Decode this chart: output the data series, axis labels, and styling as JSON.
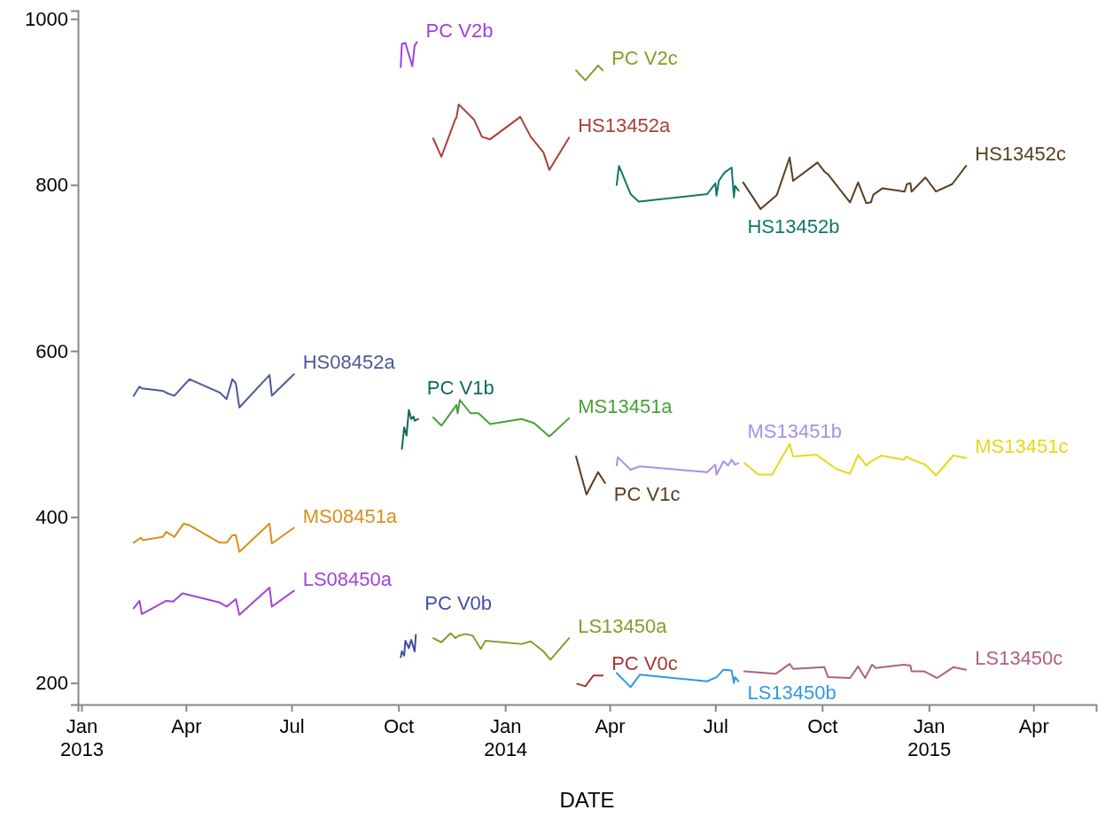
{
  "chart_data": {
    "type": "line",
    "xlabel": "DATE",
    "xlim": [
      "2012-12-29",
      "2015-05-25"
    ],
    "ylim": [
      174,
      1010
    ],
    "xticks": [
      {
        "value": "2013-01-01",
        "label": "Jan 2013"
      },
      {
        "value": "2013-04-01",
        "label": "Apr"
      },
      {
        "value": "2013-07-01",
        "label": "Jul"
      },
      {
        "value": "2013-10-01",
        "label": "Oct"
      },
      {
        "value": "2014-01-01",
        "label": "Jan 2014"
      },
      {
        "value": "2014-04-01",
        "label": "Apr"
      },
      {
        "value": "2014-07-01",
        "label": "Jul"
      },
      {
        "value": "2014-10-01",
        "label": "Oct"
      },
      {
        "value": "2015-01-01",
        "label": "Jan 2015"
      },
      {
        "value": "2015-04-01",
        "label": "Apr"
      }
    ],
    "yticks": [
      200,
      400,
      600,
      800,
      1000
    ],
    "grid": false,
    "legend": false,
    "marker": "none",
    "line_style": "solid",
    "series": [
      {
        "name": "HS08452a",
        "color": "#4a5a98",
        "x": [
          "2013-02-15",
          "2013-02-20",
          "2013-02-22",
          "2013-03-12",
          "2013-03-16",
          "2013-03-22",
          "2013-04-04",
          "2013-04-30",
          "2013-05-06",
          "2013-05-11",
          "2013-05-14",
          "2013-05-17",
          "2013-06-12",
          "2013-06-14",
          "2013-07-03"
        ],
        "values": [
          546,
          557,
          555,
          552,
          549,
          546,
          566,
          550,
          542,
          566,
          561,
          532,
          571,
          546,
          572
        ]
      },
      {
        "name": "MS08451a",
        "color": "#d8901c",
        "x": [
          "2013-02-15",
          "2013-02-21",
          "2013-02-23",
          "2013-03-12",
          "2013-03-15",
          "2013-03-22",
          "2013-03-30",
          "2013-04-04",
          "2013-04-30",
          "2013-05-06",
          "2013-05-11",
          "2013-05-14",
          "2013-05-17",
          "2013-06-12",
          "2013-06-14",
          "2013-07-03"
        ],
        "values": [
          369,
          375,
          372,
          376,
          382,
          376,
          392,
          390,
          369,
          369,
          378,
          378,
          358,
          392,
          368,
          387
        ]
      },
      {
        "name": "LS08450a",
        "color": "#a044d8",
        "x": [
          "2013-02-15",
          "2013-02-20",
          "2013-02-22",
          "2013-03-15",
          "2013-03-21",
          "2013-03-29",
          "2013-04-30",
          "2013-05-06",
          "2013-05-14",
          "2013-05-17",
          "2013-06-12",
          "2013-06-14",
          "2013-07-03"
        ],
        "values": [
          290,
          299,
          283,
          299,
          298,
          308,
          297,
          292,
          301,
          282,
          315,
          292,
          311
        ]
      },
      {
        "name": "PC V2b",
        "color": "#a040e0",
        "x": [
          "2013-10-03",
          "2013-10-04",
          "2013-10-07",
          "2013-10-13",
          "2013-10-15",
          "2013-10-17"
        ],
        "values": [
          942,
          970,
          971,
          943,
          968,
          972
        ]
      },
      {
        "name": "PC V2c",
        "color": "#8a9a28",
        "x": [
          "2014-03-03",
          "2014-03-11",
          "2014-03-22",
          "2014-03-26"
        ],
        "values": [
          938,
          926,
          944,
          938
        ]
      },
      {
        "name": "HS13452a",
        "color": "#a84038",
        "x": [
          "2013-10-31",
          "2013-11-07",
          "2013-11-19",
          "2013-11-20",
          "2013-11-22",
          "2013-12-05",
          "2013-12-12",
          "2013-12-19",
          "2014-01-14",
          "2014-01-23",
          "2014-02-03",
          "2014-02-08",
          "2014-02-25"
        ],
        "values": [
          856,
          834,
          879,
          881,
          897,
          879,
          858,
          855,
          882,
          858,
          839,
          818,
          857
        ]
      },
      {
        "name": "PC V1b",
        "color": "#106858",
        "x": [
          "2013-10-04",
          "2013-10-06",
          "2013-10-08",
          "2013-10-10",
          "2013-10-12",
          "2013-10-14",
          "2013-10-15",
          "2013-10-18"
        ],
        "values": [
          482,
          508,
          498,
          529,
          518,
          521,
          516,
          518
        ]
      },
      {
        "name": "MS13451a",
        "color": "#48a038",
        "x": [
          "2013-10-31",
          "2013-11-07",
          "2013-11-16",
          "2013-11-20",
          "2013-11-21",
          "2013-11-23",
          "2013-12-02",
          "2013-12-09",
          "2013-12-19",
          "2014-01-15",
          "2014-01-26",
          "2014-02-08",
          "2014-02-25"
        ],
        "values": [
          520,
          510,
          527,
          535,
          525,
          541,
          525,
          525,
          512,
          518,
          513,
          497,
          519
        ]
      },
      {
        "name": "PC V1c",
        "color": "#5a4020",
        "x": [
          "2014-03-03",
          "2014-03-12",
          "2014-03-22",
          "2014-03-28"
        ],
        "values": [
          473,
          427,
          454,
          441
        ]
      },
      {
        "name": "HS13452b",
        "color": "#107868",
        "x": [
          "2014-04-07",
          "2014-04-09",
          "2014-04-19",
          "2014-04-26",
          "2014-06-24",
          "2014-07-01",
          "2014-07-02",
          "2014-07-04",
          "2014-07-09",
          "2014-07-15",
          "2014-07-17",
          "2014-07-18",
          "2014-07-21"
        ],
        "values": [
          800,
          823,
          789,
          780,
          789,
          802,
          787,
          805,
          815,
          821,
          785,
          799,
          793
        ]
      },
      {
        "name": "MS13451b",
        "color": "#a890e8",
        "x": [
          "2014-04-07",
          "2014-04-08",
          "2014-04-19",
          "2014-04-27",
          "2014-06-24",
          "2014-07-01",
          "2014-07-02",
          "2014-07-08",
          "2014-07-12",
          "2014-07-15",
          "2014-07-18",
          "2014-07-21"
        ],
        "values": [
          462,
          472,
          457,
          461,
          454,
          463,
          451,
          467,
          462,
          469,
          463,
          465
        ]
      },
      {
        "name": "HS13452c",
        "color": "#5a4020",
        "x": [
          "2014-07-25",
          "2014-08-09",
          "2014-08-23",
          "2014-09-03",
          "2014-09-06",
          "2014-09-27",
          "2014-10-03",
          "2014-10-06",
          "2014-10-25",
          "2014-11-01",
          "2014-11-08",
          "2014-11-12",
          "2014-11-14",
          "2014-11-22",
          "2014-12-11",
          "2014-12-13",
          "2014-12-16",
          "2014-12-17",
          "2014-12-29",
          "2015-01-07",
          "2015-01-21",
          "2015-02-02"
        ],
        "values": [
          803,
          771,
          788,
          833,
          805,
          827,
          816,
          813,
          779,
          803,
          778,
          779,
          788,
          796,
          792,
          801,
          802,
          792,
          809,
          792,
          801,
          823
        ]
      },
      {
        "name": "MS13451c",
        "color": "#e8d818",
        "x": [
          "2014-07-26",
          "2014-08-07",
          "2014-08-19",
          "2014-09-03",
          "2014-09-06",
          "2014-09-26",
          "2014-10-13",
          "2014-10-25",
          "2014-11-01",
          "2014-11-08",
          "2014-11-12",
          "2014-11-21",
          "2014-12-10",
          "2014-12-13",
          "2014-12-16",
          "2014-12-29",
          "2015-01-07",
          "2015-01-22",
          "2015-02-02"
        ],
        "values": [
          465,
          451,
          451,
          488,
          473,
          475,
          458,
          452,
          475,
          462,
          467,
          474,
          469,
          473,
          470,
          463,
          450,
          474,
          471
        ]
      },
      {
        "name": "PC V0b",
        "color": "#4050a0",
        "x": [
          "2013-10-03",
          "2013-10-04",
          "2013-10-06",
          "2013-10-07",
          "2013-10-10",
          "2013-10-12",
          "2013-10-15",
          "2013-10-16"
        ],
        "values": [
          231,
          238,
          233,
          251,
          242,
          252,
          238,
          258
        ]
      },
      {
        "name": "LS13450a",
        "color": "#8a9a28",
        "x": [
          "2013-10-31",
          "2013-11-07",
          "2013-11-15",
          "2013-11-19",
          "2013-11-22",
          "2013-11-28",
          "2013-12-04",
          "2013-12-11",
          "2013-12-15",
          "2014-01-15",
          "2014-01-23",
          "2014-02-03",
          "2014-02-09",
          "2014-02-25"
        ],
        "values": [
          254,
          249,
          260,
          254,
          257,
          259,
          257,
          241,
          251,
          247,
          250,
          238,
          228,
          254
        ]
      },
      {
        "name": "PC V0c",
        "color": "#a03830",
        "x": [
          "2014-03-04",
          "2014-03-11",
          "2014-03-18",
          "2014-03-26"
        ],
        "values": [
          199,
          196,
          209,
          209
        ]
      },
      {
        "name": "LS13450b",
        "color": "#3098e8",
        "x": [
          "2014-04-07",
          "2014-04-19",
          "2014-04-27",
          "2014-06-24",
          "2014-07-02",
          "2014-07-08",
          "2014-07-15",
          "2014-07-17",
          "2014-07-18",
          "2014-07-21"
        ],
        "values": [
          212,
          195,
          210,
          202,
          207,
          216,
          215,
          200,
          207,
          202
        ]
      },
      {
        "name": "LS13450c",
        "color": "#b06080",
        "x": [
          "2014-07-26",
          "2014-08-22",
          "2014-09-03",
          "2014-09-06",
          "2014-10-03",
          "2014-10-06",
          "2014-10-25",
          "2014-11-01",
          "2014-11-07",
          "2014-11-13",
          "2014-11-16",
          "2014-12-10",
          "2014-12-16",
          "2014-12-17",
          "2014-12-28",
          "2015-01-08",
          "2015-01-22",
          "2015-02-02"
        ],
        "values": [
          214,
          211,
          223,
          217,
          219,
          207,
          206,
          220,
          206,
          222,
          218,
          222,
          221,
          214,
          214,
          206,
          219,
          216
        ]
      }
    ]
  }
}
